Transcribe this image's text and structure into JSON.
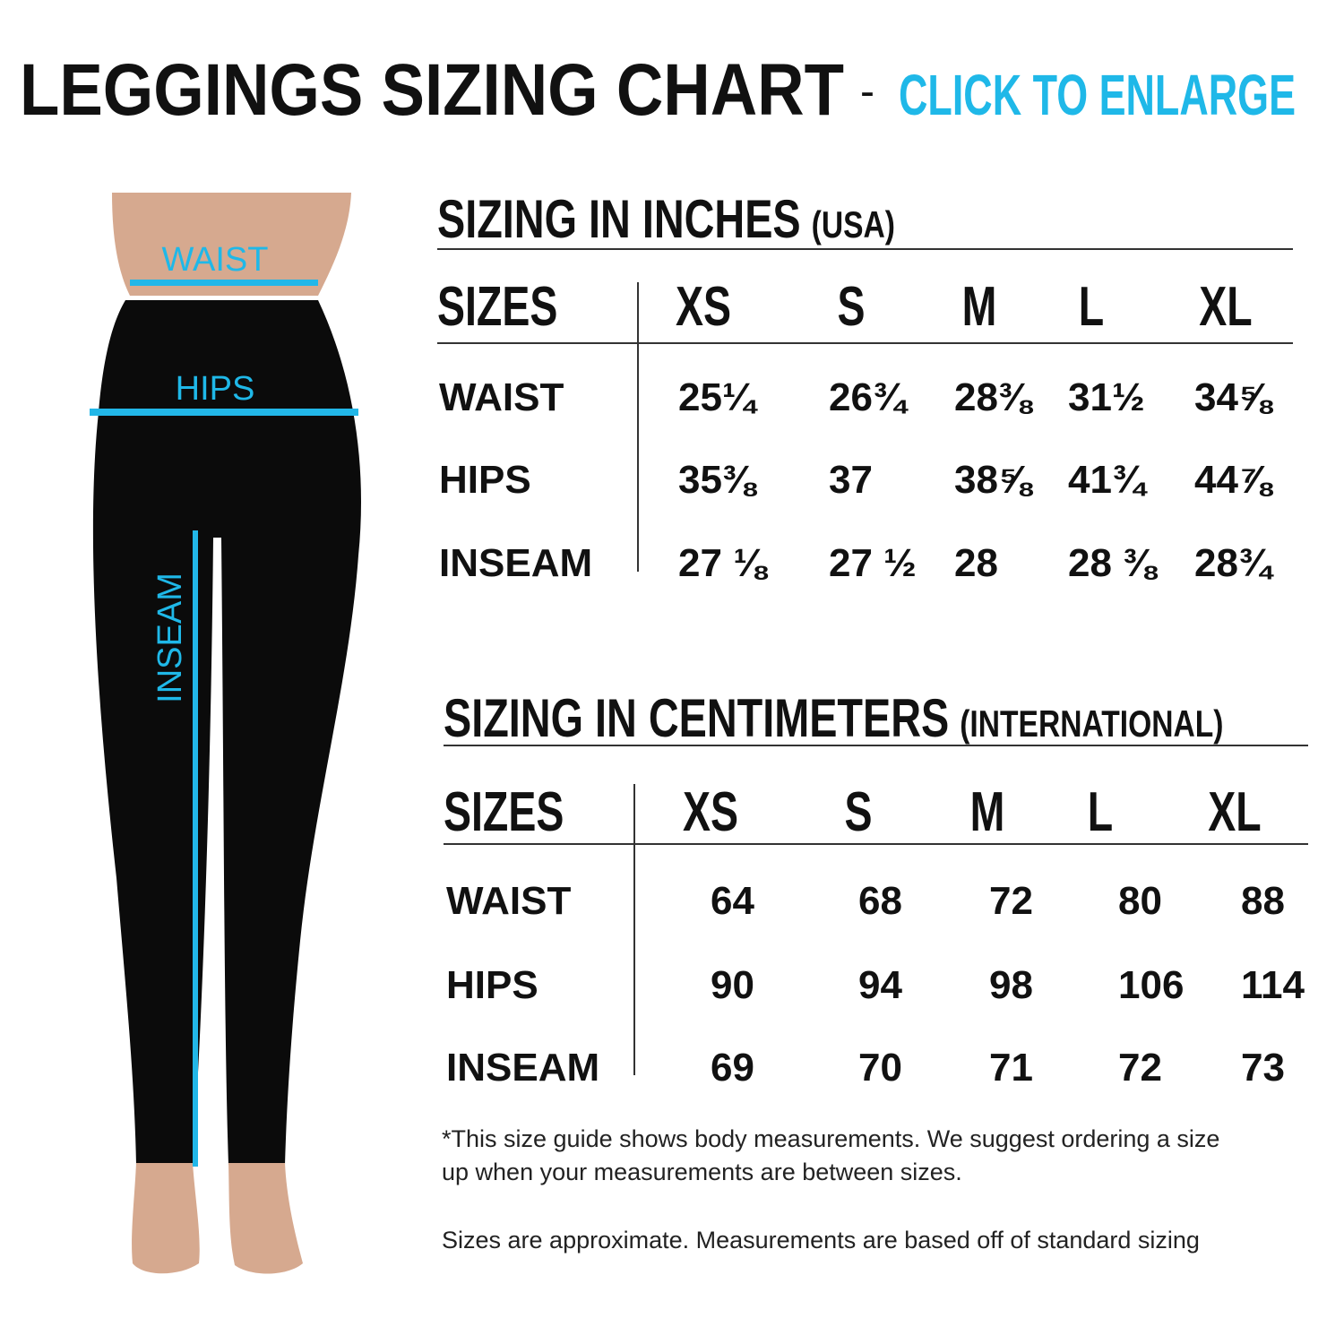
{
  "header": {
    "title": "LEGGINGS SIZING CHART",
    "separator": "-",
    "link": "CLICK TO ENLARGE"
  },
  "figure": {
    "labels": [
      "WAIST",
      "HIPS",
      "INSEAM"
    ]
  },
  "tables": [
    {
      "title": "SIZING IN INCHES",
      "subtitle": "(USA)",
      "columns": [
        "SIZES",
        "XS",
        "S",
        "M",
        "L",
        "XL"
      ],
      "rows": [
        [
          "WAIST",
          "25¼",
          "26¾",
          "28⅜",
          "31½",
          "34⅝"
        ],
        [
          "HIPS",
          "35⅜",
          "37",
          "38⅝",
          "41¾",
          "44⅞"
        ],
        [
          "INSEAM",
          "27 ⅛",
          "27 ½",
          "28",
          "28 ⅜",
          "28¾"
        ]
      ]
    },
    {
      "title": "SIZING IN CENTIMETERS",
      "subtitle": "(INTERNATIONAL)",
      "columns": [
        "SIZES",
        "XS",
        "S",
        "M",
        "L",
        "XL"
      ],
      "rows": [
        [
          "WAIST",
          "64",
          "68",
          "72",
          "80",
          "88"
        ],
        [
          "HIPS",
          "90",
          "94",
          "98",
          "106",
          "114"
        ],
        [
          "INSEAM",
          "69",
          "70",
          "71",
          "72",
          "73"
        ]
      ]
    }
  ],
  "notes": [
    "*This size guide shows body measurements. We suggest ordering a size",
    "up when your measurements are between sizes.",
    "Sizes are approximate. Measurements are based off of standard sizing"
  ]
}
